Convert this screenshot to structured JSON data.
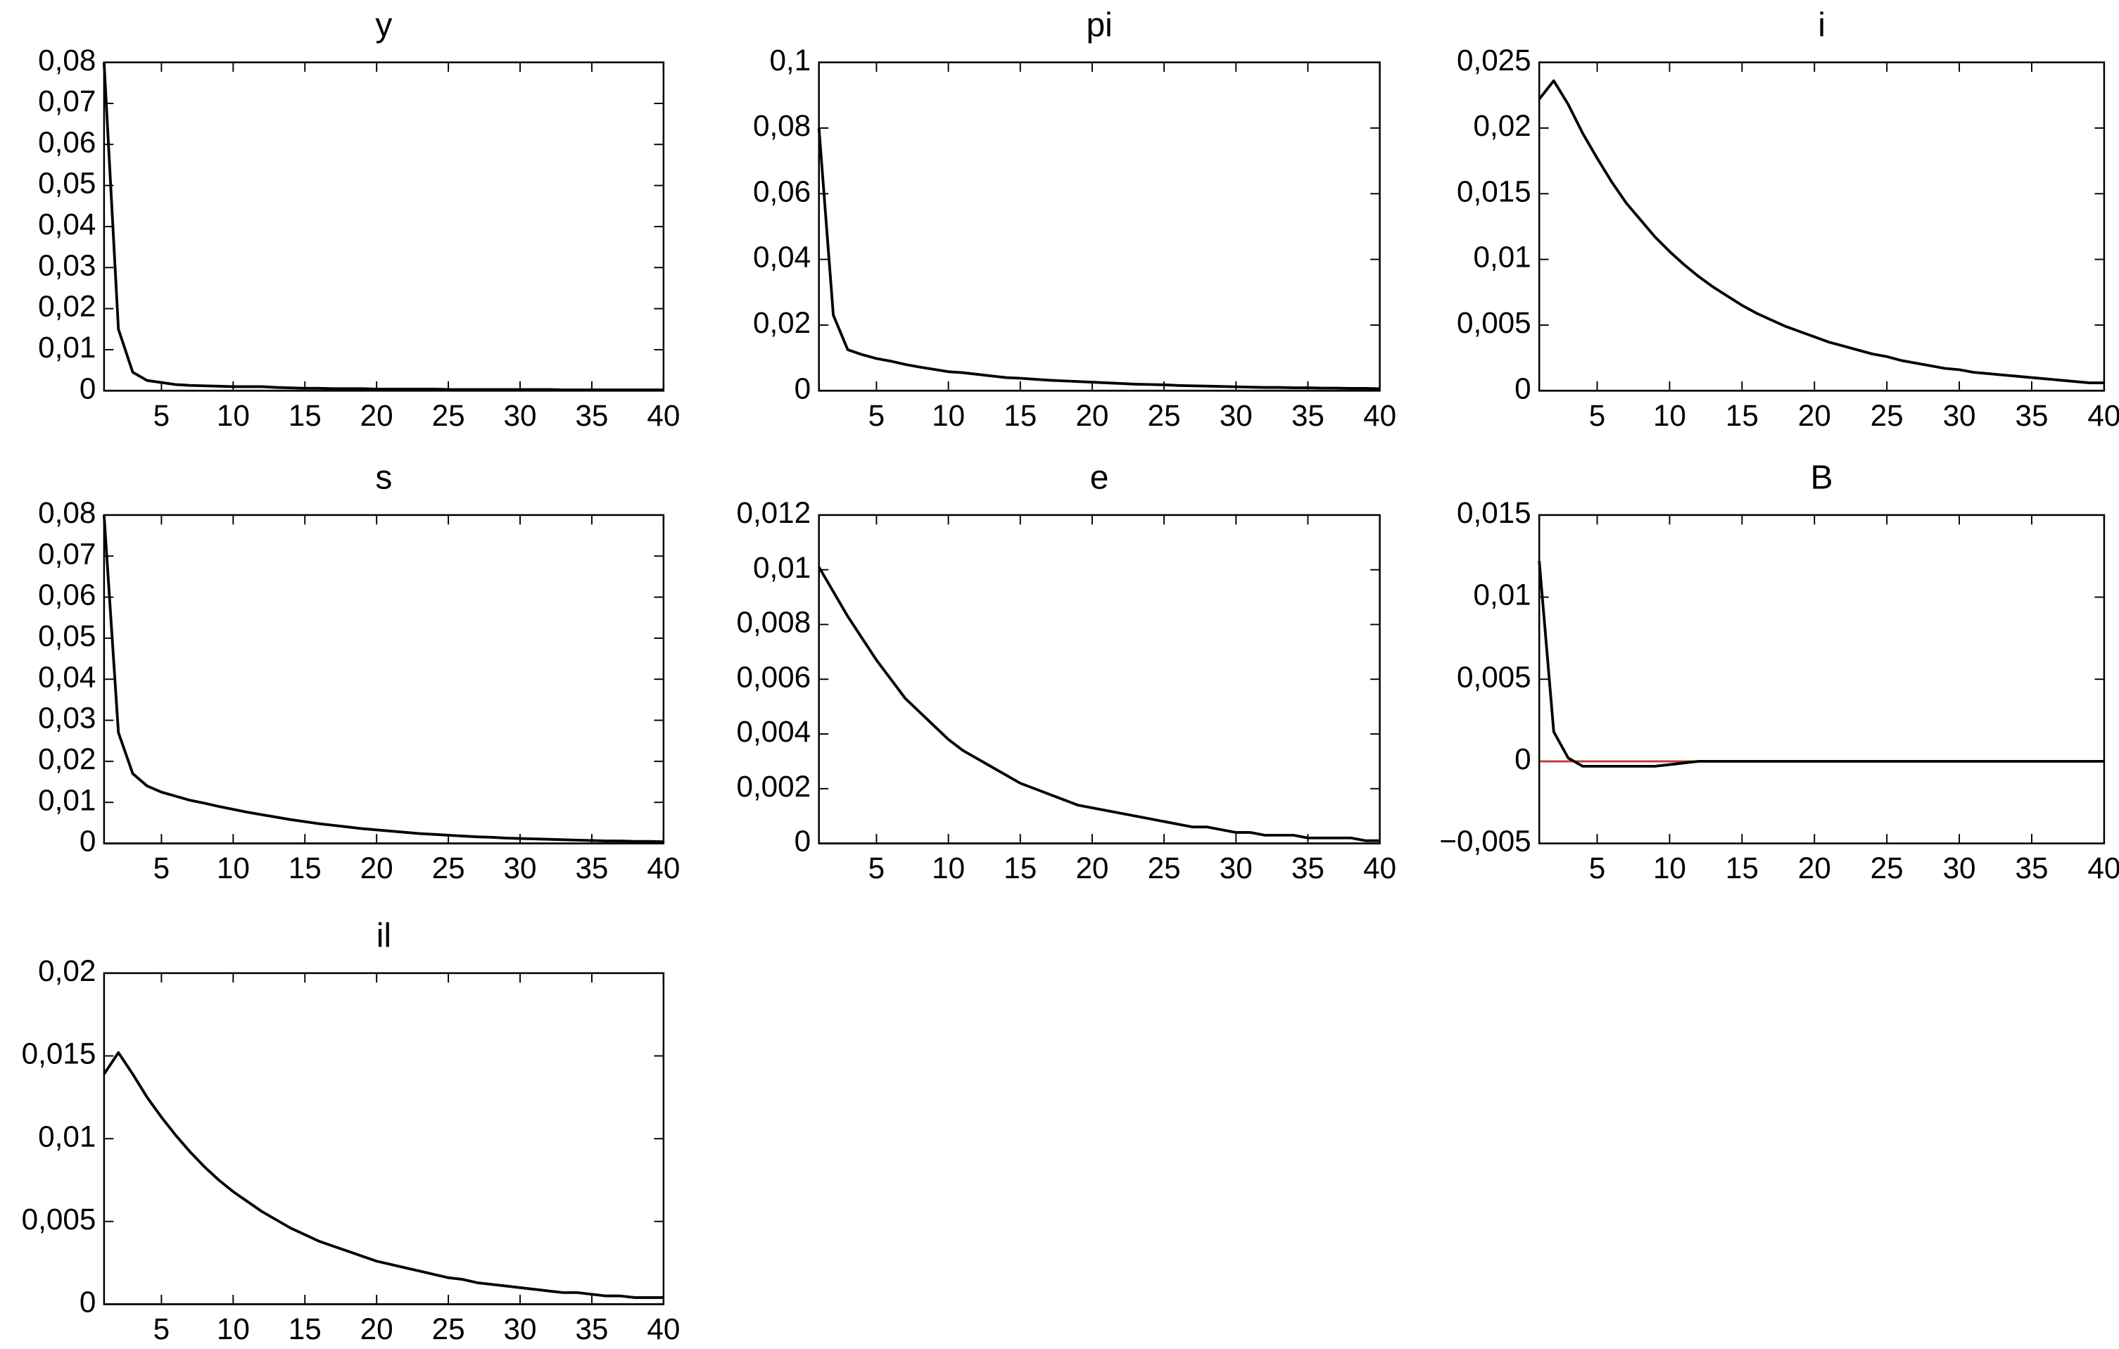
{
  "chart_data": [
    {
      "type": "line",
      "title": "y",
      "x": [
        1,
        2,
        3,
        4,
        5,
        6,
        7,
        8,
        9,
        10,
        11,
        12,
        13,
        14,
        15,
        16,
        17,
        18,
        19,
        20,
        21,
        22,
        23,
        24,
        25,
        26,
        27,
        28,
        29,
        30,
        31,
        32,
        33,
        34,
        35,
        36,
        37,
        38,
        39,
        40
      ],
      "series": [
        {
          "color": "#000000",
          "values": [
            0.08,
            0.015,
            0.0045,
            0.0025,
            0.002,
            0.0015,
            0.0013,
            0.0012,
            0.0011,
            0.001,
            0.001,
            0.001,
            0.0008,
            0.0007,
            0.0006,
            0.0006,
            0.0005,
            0.0005,
            0.0005,
            0.0004,
            0.0004,
            0.0004,
            0.0004,
            0.0004,
            0.0003,
            0.0003,
            0.0003,
            0.0003,
            0.0003,
            0.0003,
            0.0003,
            0.0003,
            0.0002,
            0.0002,
            0.0002,
            0.0002,
            0.0002,
            0.0002,
            0.0002,
            0.0002
          ]
        }
      ],
      "xlim": [
        1,
        40
      ],
      "xticks": [
        5,
        10,
        15,
        20,
        25,
        30,
        35,
        40
      ],
      "ylim": [
        0,
        0.08
      ],
      "yticks": [
        0,
        {
          "value": 0.01,
          "label": "0,01"
        },
        {
          "value": 0.02,
          "label": "0,02"
        },
        {
          "value": 0.03,
          "label": "0,03"
        },
        {
          "value": 0.04,
          "label": "0,04"
        },
        {
          "value": 0.05,
          "label": "0,05"
        },
        {
          "value": 0.06,
          "label": "0,06"
        },
        {
          "value": 0.07,
          "label": "0,07"
        },
        {
          "value": 0.08,
          "label": "0,08"
        }
      ],
      "hline": 0,
      "hline_color": "#c0392b"
    },
    {
      "type": "line",
      "title": "pi",
      "x": [
        1,
        2,
        3,
        4,
        5,
        6,
        7,
        8,
        9,
        10,
        11,
        12,
        13,
        14,
        15,
        16,
        17,
        18,
        19,
        20,
        21,
        22,
        23,
        24,
        25,
        26,
        27,
        28,
        29,
        30,
        31,
        32,
        33,
        34,
        35,
        36,
        37,
        38,
        39,
        40
      ],
      "series": [
        {
          "color": "#000000",
          "values": [
            0.08,
            0.023,
            0.0125,
            0.011,
            0.0098,
            0.009,
            0.008,
            0.0072,
            0.0065,
            0.0058,
            0.0055,
            0.005,
            0.0045,
            0.004,
            0.0038,
            0.0035,
            0.0032,
            0.003,
            0.0028,
            0.0026,
            0.0024,
            0.0022,
            0.002,
            0.0019,
            0.0018,
            0.0016,
            0.0015,
            0.0014,
            0.0013,
            0.0012,
            0.0011,
            0.001,
            0.001,
            0.0009,
            0.0009,
            0.0008,
            0.0008,
            0.0007,
            0.0007,
            0.0006
          ]
        }
      ],
      "xlim": [
        1,
        40
      ],
      "xticks": [
        5,
        10,
        15,
        20,
        25,
        30,
        35,
        40
      ],
      "ylim": [
        0,
        0.1
      ],
      "yticks": [
        0,
        {
          "value": 0.02,
          "label": "0,02"
        },
        {
          "value": 0.04,
          "label": "0,04"
        },
        {
          "value": 0.06,
          "label": "0,06"
        },
        {
          "value": 0.08,
          "label": "0,08"
        },
        {
          "value": 0.1,
          "label": "0,1"
        }
      ],
      "hline": 0,
      "hline_color": "#c0392b"
    },
    {
      "type": "line",
      "title": "i",
      "x": [
        1,
        2,
        3,
        4,
        5,
        6,
        7,
        8,
        9,
        10,
        11,
        12,
        13,
        14,
        15,
        16,
        17,
        18,
        19,
        20,
        21,
        22,
        23,
        24,
        25,
        26,
        27,
        28,
        29,
        30,
        31,
        32,
        33,
        34,
        35,
        36,
        37,
        38,
        39,
        40
      ],
      "series": [
        {
          "color": "#000000",
          "values": [
            0.0222,
            0.0236,
            0.0218,
            0.0196,
            0.0177,
            0.0159,
            0.0143,
            0.013,
            0.0117,
            0.0106,
            0.0096,
            0.0087,
            0.0079,
            0.0072,
            0.0065,
            0.0059,
            0.0054,
            0.0049,
            0.0045,
            0.0041,
            0.0037,
            0.0034,
            0.0031,
            0.0028,
            0.0026,
            0.0023,
            0.0021,
            0.0019,
            0.0017,
            0.0016,
            0.0014,
            0.0013,
            0.0012,
            0.0011,
            0.001,
            0.0009,
            0.0008,
            0.0007,
            0.0006,
            0.0006
          ]
        }
      ],
      "xlim": [
        1,
        40
      ],
      "xticks": [
        5,
        10,
        15,
        20,
        25,
        30,
        35,
        40
      ],
      "ylim": [
        0,
        0.025
      ],
      "yticks": [
        0,
        {
          "value": 0.005,
          "label": "0,005"
        },
        {
          "value": 0.01,
          "label": "0,01"
        },
        {
          "value": 0.015,
          "label": "0,015"
        },
        {
          "value": 0.02,
          "label": "0,02"
        },
        {
          "value": 0.025,
          "label": "0,025"
        }
      ],
      "hline": 0,
      "hline_color": "#c0392b"
    },
    {
      "type": "line",
      "title": "s",
      "x": [
        1,
        2,
        3,
        4,
        5,
        6,
        7,
        8,
        9,
        10,
        11,
        12,
        13,
        14,
        15,
        16,
        17,
        18,
        19,
        20,
        21,
        22,
        23,
        24,
        25,
        26,
        27,
        28,
        29,
        30,
        31,
        32,
        33,
        34,
        35,
        36,
        37,
        38,
        39,
        40
      ],
      "series": [
        {
          "color": "#000000",
          "values": [
            0.08,
            0.027,
            0.017,
            0.014,
            0.0125,
            0.0115,
            0.0105,
            0.0098,
            0.009,
            0.0083,
            0.0076,
            0.007,
            0.0064,
            0.0058,
            0.0053,
            0.0048,
            0.0044,
            0.004,
            0.0036,
            0.0033,
            0.003,
            0.0027,
            0.0024,
            0.0022,
            0.002,
            0.0018,
            0.0016,
            0.0015,
            0.0013,
            0.0012,
            0.0011,
            0.001,
            0.0009,
            0.0008,
            0.0007,
            0.0006,
            0.0006,
            0.0005,
            0.0005,
            0.0004
          ]
        }
      ],
      "xlim": [
        1,
        40
      ],
      "xticks": [
        5,
        10,
        15,
        20,
        25,
        30,
        35,
        40
      ],
      "ylim": [
        0,
        0.08
      ],
      "yticks": [
        0,
        {
          "value": 0.01,
          "label": "0,01"
        },
        {
          "value": 0.02,
          "label": "0,02"
        },
        {
          "value": 0.03,
          "label": "0,03"
        },
        {
          "value": 0.04,
          "label": "0,04"
        },
        {
          "value": 0.05,
          "label": "0,05"
        },
        {
          "value": 0.06,
          "label": "0,06"
        },
        {
          "value": 0.07,
          "label": "0,07"
        },
        {
          "value": 0.08,
          "label": "0,08"
        }
      ],
      "hline": 0,
      "hline_color": "#c0392b"
    },
    {
      "type": "line",
      "title": "e",
      "x": [
        1,
        2,
        3,
        4,
        5,
        6,
        7,
        8,
        9,
        10,
        11,
        12,
        13,
        14,
        15,
        16,
        17,
        18,
        19,
        20,
        21,
        22,
        23,
        24,
        25,
        26,
        27,
        28,
        29,
        30,
        31,
        32,
        33,
        34,
        35,
        36,
        37,
        38,
        39,
        40
      ],
      "series": [
        {
          "color": "#000000",
          "values": [
            0.0101,
            0.0092,
            0.0083,
            0.0075,
            0.0067,
            0.006,
            0.0053,
            0.0048,
            0.0043,
            0.0038,
            0.0034,
            0.0031,
            0.0028,
            0.0025,
            0.0022,
            0.002,
            0.0018,
            0.0016,
            0.0014,
            0.0013,
            0.0012,
            0.0011,
            0.001,
            0.0009,
            0.0008,
            0.0007,
            0.0006,
            0.0006,
            0.0005,
            0.0004,
            0.0004,
            0.0003,
            0.0003,
            0.0003,
            0.0002,
            0.0002,
            0.0002,
            0.0002,
            0.0001,
            0.0001
          ]
        }
      ],
      "xlim": [
        1,
        40
      ],
      "xticks": [
        5,
        10,
        15,
        20,
        25,
        30,
        35,
        40
      ],
      "ylim": [
        0,
        0.012
      ],
      "yticks": [
        0,
        {
          "value": 0.002,
          "label": "0,002"
        },
        {
          "value": 0.004,
          "label": "0,004"
        },
        {
          "value": 0.006,
          "label": "0,006"
        },
        {
          "value": 0.008,
          "label": "0,008"
        },
        {
          "value": 0.01,
          "label": "0,01"
        },
        {
          "value": 0.012,
          "label": "0,012"
        }
      ],
      "hline": 0,
      "hline_color": "#c0392b"
    },
    {
      "type": "line",
      "title": "B",
      "x": [
        1,
        2,
        3,
        4,
        5,
        6,
        7,
        8,
        9,
        10,
        11,
        12,
        13,
        14,
        15,
        16,
        17,
        18,
        19,
        20,
        21,
        22,
        23,
        24,
        25,
        26,
        27,
        28,
        29,
        30,
        31,
        32,
        33,
        34,
        35,
        36,
        37,
        38,
        39,
        40
      ],
      "series": [
        {
          "color": "#000000",
          "values": [
            0.0122,
            0.0018,
            0.0002,
            -0.0003,
            -0.0003,
            -0.0003,
            -0.0003,
            -0.0003,
            -0.0003,
            -0.0002,
            -0.0001,
            0,
            0,
            0,
            0,
            0,
            0,
            0,
            0,
            0,
            0,
            0,
            0,
            0,
            0,
            0,
            0,
            0,
            0,
            0,
            0,
            0,
            0,
            0,
            0,
            0,
            0,
            0,
            0,
            0
          ]
        }
      ],
      "xlim": [
        1,
        40
      ],
      "xticks": [
        5,
        10,
        15,
        20,
        25,
        30,
        35,
        40
      ],
      "ylim": [
        -0.005,
        0.015
      ],
      "yticks": [
        {
          "value": -0.005,
          "label": "−0,005"
        },
        0,
        {
          "value": 0.005,
          "label": "0,005"
        },
        {
          "value": 0.01,
          "label": "0,01"
        },
        {
          "value": 0.015,
          "label": "0,015"
        }
      ],
      "hline": 0,
      "hline_color": "#c0392b"
    },
    {
      "type": "line",
      "title": "il",
      "x": [
        1,
        2,
        3,
        4,
        5,
        6,
        7,
        8,
        9,
        10,
        11,
        12,
        13,
        14,
        15,
        16,
        17,
        18,
        19,
        20,
        21,
        22,
        23,
        24,
        25,
        26,
        27,
        28,
        29,
        30,
        31,
        32,
        33,
        34,
        35,
        36,
        37,
        38,
        39,
        40
      ],
      "series": [
        {
          "color": "#000000",
          "values": [
            0.0139,
            0.0152,
            0.0139,
            0.0125,
            0.0113,
            0.0102,
            0.0092,
            0.0083,
            0.0075,
            0.0068,
            0.0062,
            0.0056,
            0.0051,
            0.0046,
            0.0042,
            0.0038,
            0.0035,
            0.0032,
            0.0029,
            0.0026,
            0.0024,
            0.0022,
            0.002,
            0.0018,
            0.0016,
            0.0015,
            0.0013,
            0.0012,
            0.0011,
            0.001,
            0.0009,
            0.0008,
            0.0007,
            0.0007,
            0.0006,
            0.0005,
            0.0005,
            0.0004,
            0.0004,
            0.0004
          ]
        }
      ],
      "xlim": [
        1,
        40
      ],
      "xticks": [
        5,
        10,
        15,
        20,
        25,
        30,
        35,
        40
      ],
      "ylim": [
        0,
        0.02
      ],
      "yticks": [
        0,
        {
          "value": 0.005,
          "label": "0,005"
        },
        {
          "value": 0.01,
          "label": "0,01"
        },
        {
          "value": 0.015,
          "label": "0,015"
        },
        {
          "value": 0.02,
          "label": "0,02"
        }
      ],
      "hline": 0,
      "hline_color": "#c0392b"
    }
  ]
}
